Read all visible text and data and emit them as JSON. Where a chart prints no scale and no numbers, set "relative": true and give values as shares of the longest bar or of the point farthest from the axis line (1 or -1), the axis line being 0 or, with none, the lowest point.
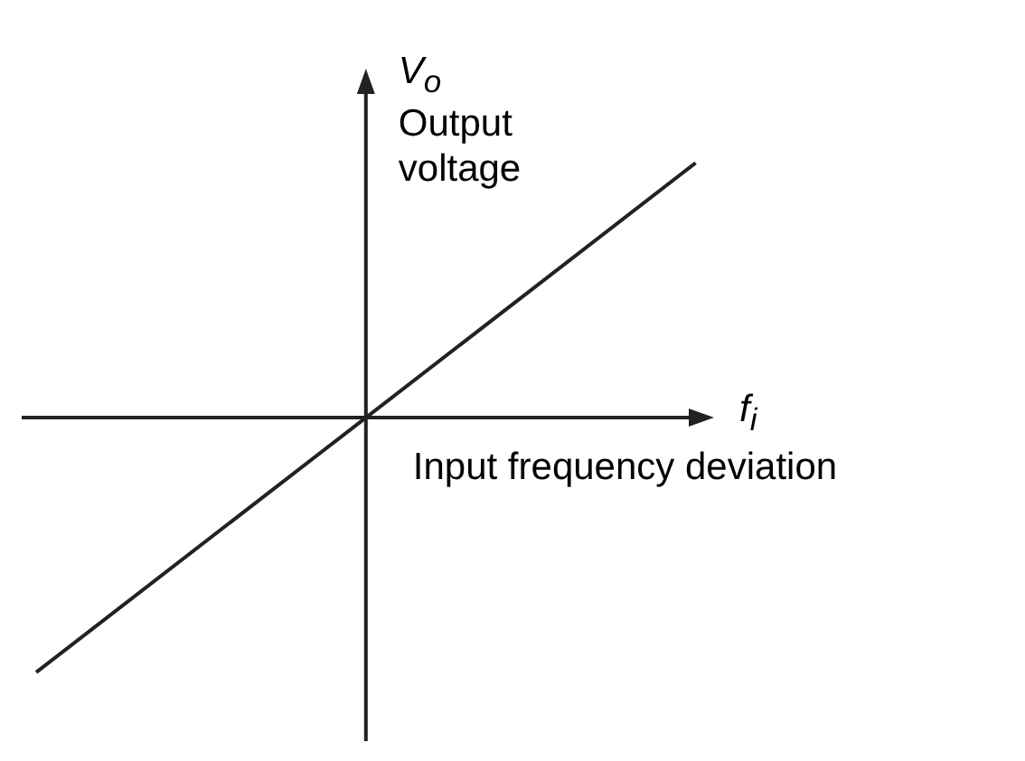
{
  "chart_data": {
    "type": "line",
    "relative": true,
    "xlabel": "Input frequency deviation",
    "ylabel": "Output voltage",
    "annotations": [
      "V$_{o}$",
      "f$_{i}$"
    ],
    "categories": [
      null,
      null,
      null
    ],
    "series": [
      {
        "color": "#222222",
        "values": [
          -1,
          0,
          1
        ]
      }
    ],
    "marker": "none",
    "line_style": "solid"
  }
}
